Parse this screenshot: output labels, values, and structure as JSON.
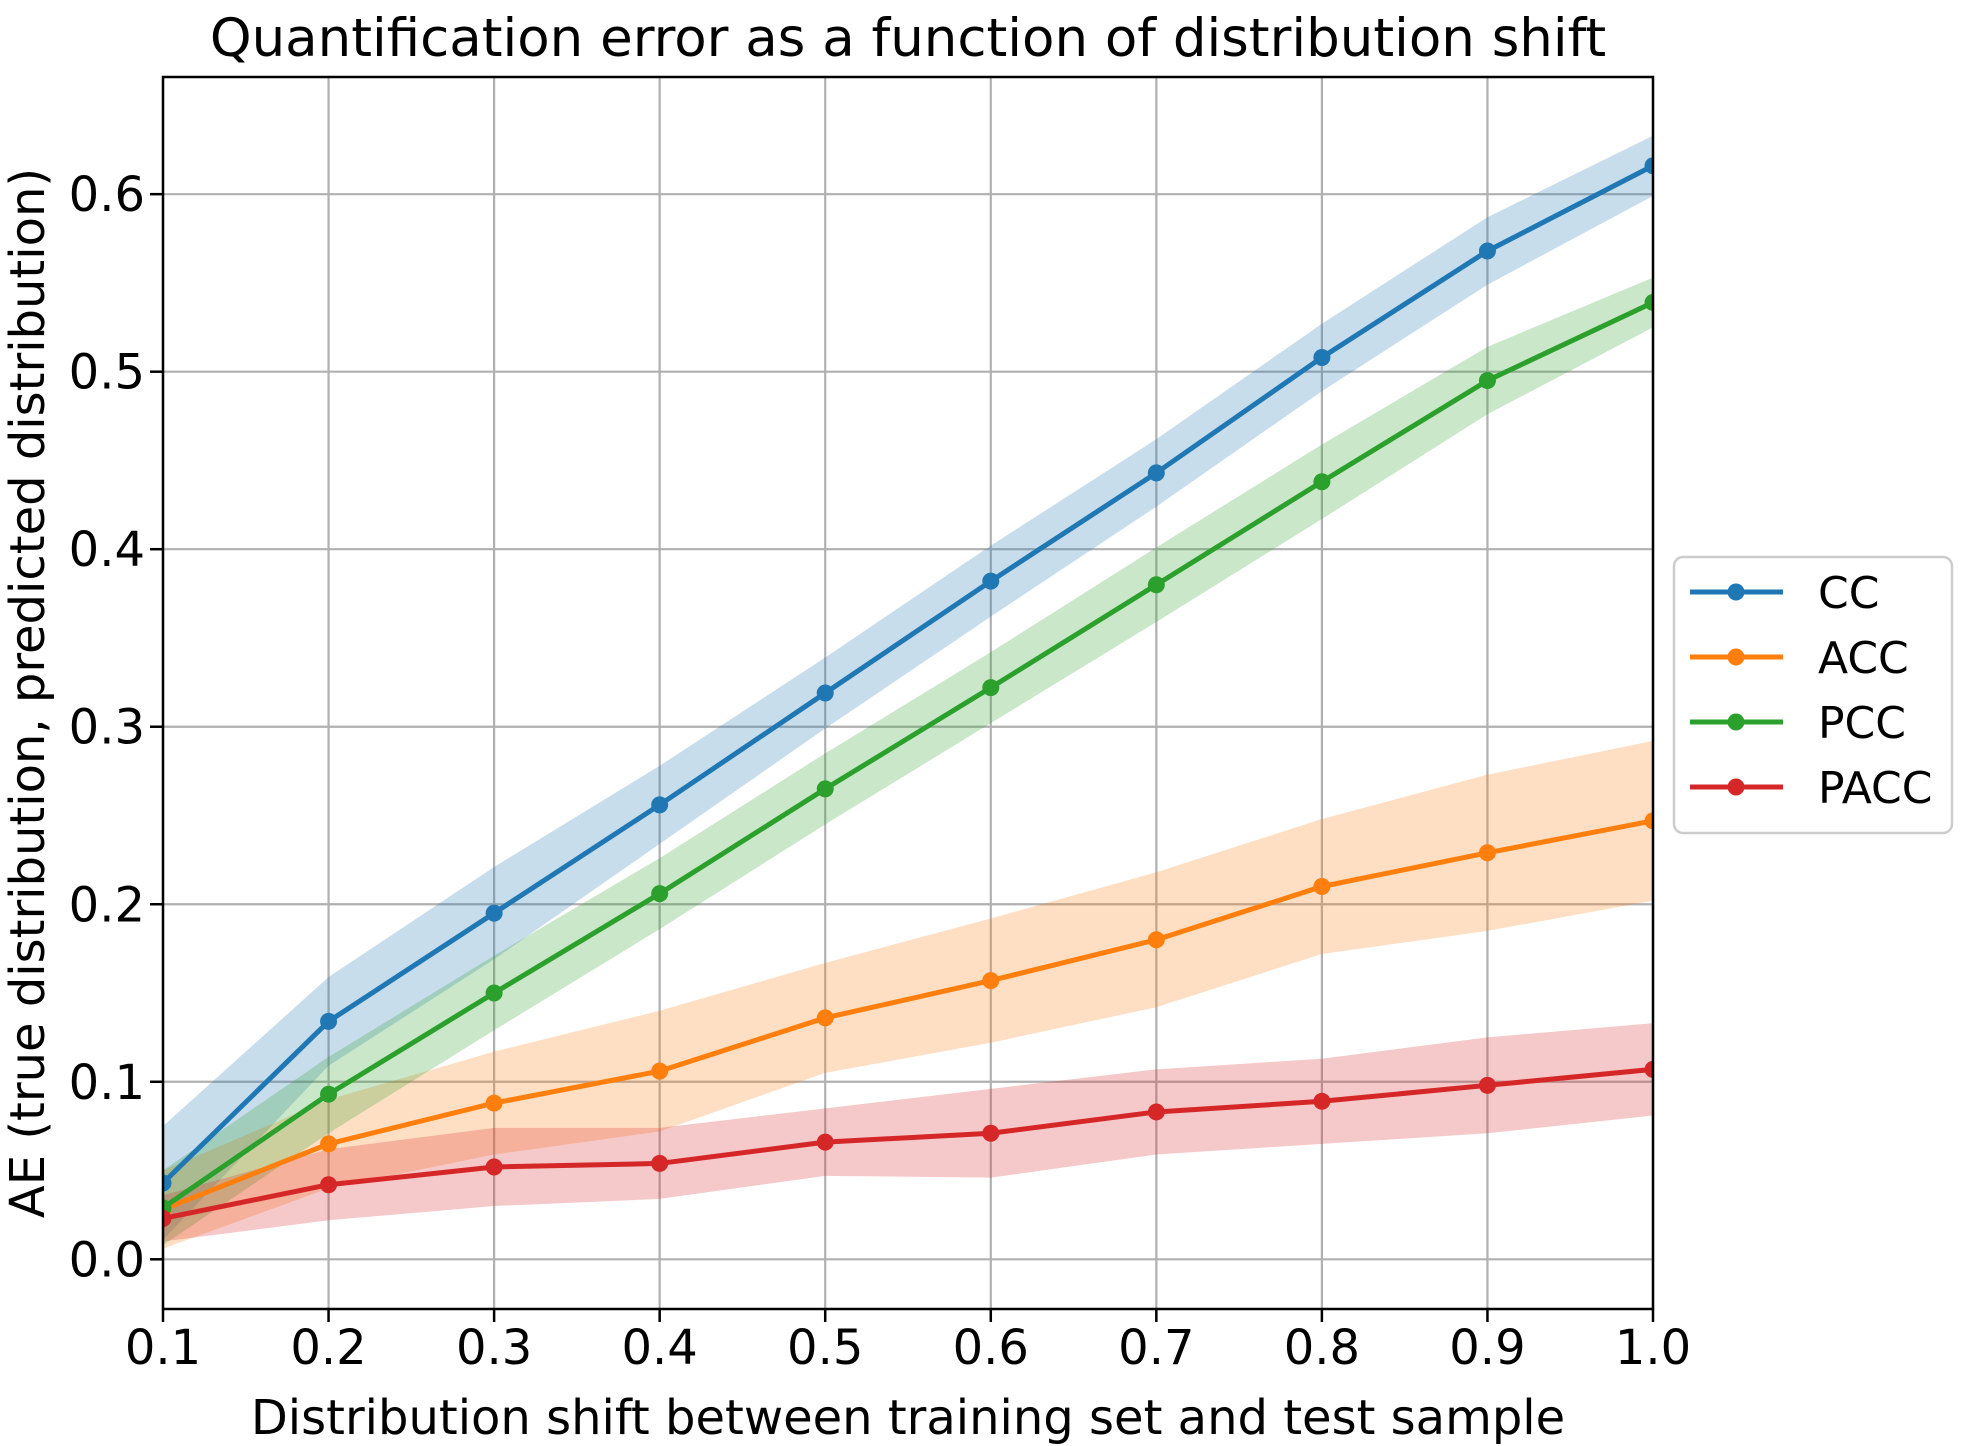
{
  "chart_data": {
    "type": "line",
    "title": "Quantification error as a function of distribution shift",
    "xlabel": "Distribution shift between training set and test sample",
    "ylabel": "AE (true distribution, predicted distribution)",
    "x": [
      0.1,
      0.2,
      0.3,
      0.4,
      0.5,
      0.6,
      0.7,
      0.8,
      0.9,
      1.0
    ],
    "xlim": [
      0.1,
      1.0
    ],
    "ylim": [
      -0.028,
      0.666
    ],
    "x_tick_labels": [
      "0.1",
      "0.2",
      "0.3",
      "0.4",
      "0.5",
      "0.6",
      "0.7",
      "0.8",
      "0.9",
      "1.0"
    ],
    "y_tick_labels": [
      "0.0",
      "0.1",
      "0.2",
      "0.3",
      "0.4",
      "0.5",
      "0.6"
    ],
    "y_tick_values": [
      0.0,
      0.1,
      0.2,
      0.3,
      0.4,
      0.5,
      0.6
    ],
    "grid": true,
    "grid_color": "#b0b0b0",
    "spine_color": "#000000",
    "band_opacity": 0.25,
    "legend_position": "outside-right",
    "series": [
      {
        "name": "CC",
        "color": "#1f77b4",
        "values": [
          0.043,
          0.134,
          0.195,
          0.256,
          0.319,
          0.382,
          0.443,
          0.508,
          0.568,
          0.616
        ],
        "band_lower": [
          0.011,
          0.109,
          0.169,
          0.234,
          0.299,
          0.362,
          0.424,
          0.489,
          0.549,
          0.599
        ],
        "band_upper": [
          0.075,
          0.159,
          0.221,
          0.278,
          0.339,
          0.402,
          0.462,
          0.527,
          0.587,
          0.633
        ]
      },
      {
        "name": "ACC",
        "color": "#ff7f0e",
        "values": [
          0.028,
          0.065,
          0.088,
          0.106,
          0.136,
          0.157,
          0.18,
          0.21,
          0.229,
          0.247
        ],
        "band_lower": [
          0.006,
          0.04,
          0.059,
          0.072,
          0.105,
          0.122,
          0.142,
          0.172,
          0.185,
          0.202
        ],
        "band_upper": [
          0.05,
          0.09,
          0.117,
          0.14,
          0.167,
          0.192,
          0.218,
          0.248,
          0.273,
          0.292
        ]
      },
      {
        "name": "PCC",
        "color": "#2ca02c",
        "values": [
          0.029,
          0.093,
          0.15,
          0.206,
          0.265,
          0.322,
          0.38,
          0.438,
          0.495,
          0.539
        ],
        "band_lower": [
          0.008,
          0.071,
          0.129,
          0.186,
          0.245,
          0.302,
          0.359,
          0.417,
          0.476,
          0.525
        ],
        "band_upper": [
          0.05,
          0.114,
          0.171,
          0.226,
          0.285,
          0.342,
          0.401,
          0.459,
          0.514,
          0.553
        ]
      },
      {
        "name": "PACC",
        "color": "#d62728",
        "values": [
          0.023,
          0.042,
          0.052,
          0.054,
          0.066,
          0.071,
          0.083,
          0.089,
          0.098,
          0.107
        ],
        "band_lower": [
          0.01,
          0.022,
          0.03,
          0.034,
          0.047,
          0.046,
          0.059,
          0.065,
          0.071,
          0.081
        ],
        "band_upper": [
          0.036,
          0.062,
          0.074,
          0.074,
          0.085,
          0.096,
          0.107,
          0.113,
          0.125,
          0.133
        ]
      }
    ]
  }
}
